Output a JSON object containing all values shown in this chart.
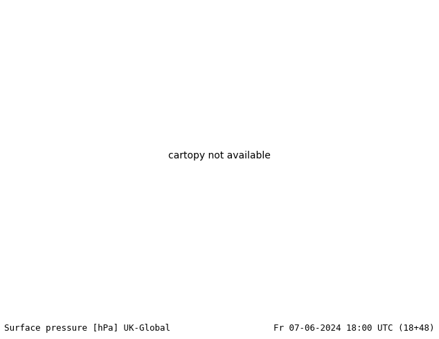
{
  "title_left": "Surface pressure [hPa] UK-Global",
  "title_right": "Fr 07-06-2024 18:00 UTC (18+48)",
  "bg_color": "#d0d0d0",
  "land_color": "#b5d9a0",
  "border_color": "#808080",
  "fig_width": 6.34,
  "fig_height": 4.9,
  "dpi": 100,
  "footer_fontsize": 9,
  "map_extent": [
    -12,
    18,
    44,
    62
  ],
  "blue_color": "#0000cc",
  "black_color": "#000000",
  "red_color": "#cc0000",
  "blue_lw": 1.1,
  "black_lw": 1.4,
  "red_lw": 1.1,
  "label_fontsize": 7.5,
  "label_fontfamily": "monospace"
}
